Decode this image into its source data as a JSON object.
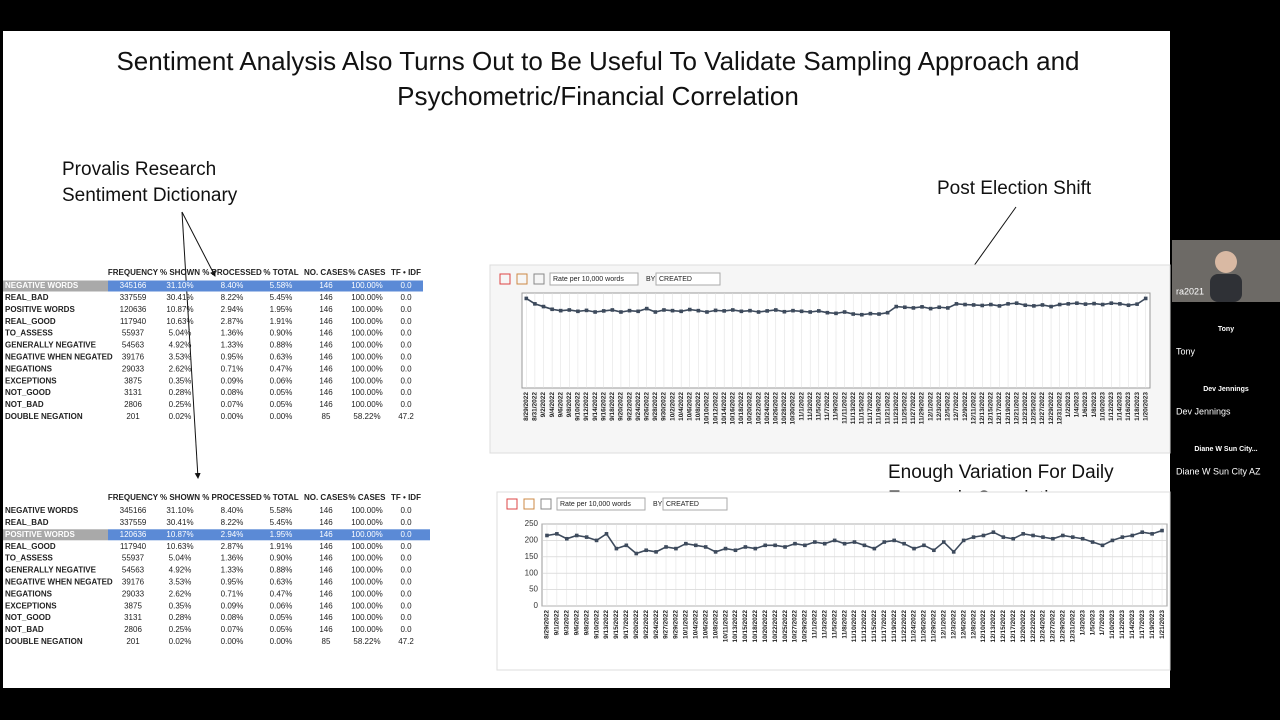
{
  "slide": {
    "title_lines": [
      "Sentiment Analysis Also Turns Out to Be Useful To Validate Sampling Approach and",
      "Psychometric/Financial Correlation"
    ],
    "dictionary_note": [
      "Provalis Research",
      "Sentiment Dictionary"
    ],
    "shift_note": "Post Election Shift",
    "variation_note": [
      "Enough Variation For Daily",
      "Economic Correlation"
    ]
  },
  "tables": [
    {
      "columns": [
        "FREQUENCY",
        "% SHOWN",
        "% PROCESSED",
        "% TOTAL",
        "NO. CASES",
        "% CASES",
        "TF • IDF"
      ],
      "selected_row": 0,
      "rows": [
        [
          "NEGATIVE WORDS",
          345166,
          "31.10%",
          "8.40%",
          "5.58%",
          146,
          "100.00%",
          "0.0"
        ],
        [
          "REAL_BAD",
          337559,
          "30.41%",
          "8.22%",
          "5.45%",
          146,
          "100.00%",
          "0.0"
        ],
        [
          "POSITIVE WORDS",
          120636,
          "10.87%",
          "2.94%",
          "1.95%",
          146,
          "100.00%",
          "0.0"
        ],
        [
          "REAL_GOOD",
          117940,
          "10.63%",
          "2.87%",
          "1.91%",
          146,
          "100.00%",
          "0.0"
        ],
        [
          "TO_ASSESS",
          55937,
          "5.04%",
          "1.36%",
          "0.90%",
          146,
          "100.00%",
          "0.0"
        ],
        [
          "GENERALLY NEGATIVE",
          54563,
          "4.92%",
          "1.33%",
          "0.88%",
          146,
          "100.00%",
          "0.0"
        ],
        [
          "NEGATIVE WHEN NEGATED",
          39176,
          "3.53%",
          "0.95%",
          "0.63%",
          146,
          "100.00%",
          "0.0"
        ],
        [
          "NEGATIONS",
          29033,
          "2.62%",
          "0.71%",
          "0.47%",
          146,
          "100.00%",
          "0.0"
        ],
        [
          "EXCEPTIONS",
          3875,
          "0.35%",
          "0.09%",
          "0.06%",
          146,
          "100.00%",
          "0.0"
        ],
        [
          "NOT_GOOD",
          3131,
          "0.28%",
          "0.08%",
          "0.05%",
          146,
          "100.00%",
          "0.0"
        ],
        [
          "NOT_BAD",
          2806,
          "0.25%",
          "0.07%",
          "0.05%",
          146,
          "100.00%",
          "0.0"
        ],
        [
          "DOUBLE NEGATION",
          201,
          "0.02%",
          "0.00%",
          "0.00%",
          85,
          "58.22%",
          "47.2"
        ]
      ]
    },
    {
      "columns": [
        "FREQUENCY",
        "% SHOWN",
        "% PROCESSED",
        "% TOTAL",
        "NO. CASES",
        "% CASES",
        "TF • IDF"
      ],
      "selected_row": 2,
      "rows": [
        [
          "NEGATIVE WORDS",
          345166,
          "31.10%",
          "8.40%",
          "5.58%",
          146,
          "100.00%",
          "0.0"
        ],
        [
          "REAL_BAD",
          337559,
          "30.41%",
          "8.22%",
          "5.45%",
          146,
          "100.00%",
          "0.0"
        ],
        [
          "POSITIVE WORDS",
          120636,
          "10.87%",
          "2.94%",
          "1.95%",
          146,
          "100.00%",
          "0.0"
        ],
        [
          "REAL_GOOD",
          117940,
          "10.63%",
          "2.87%",
          "1.91%",
          146,
          "100.00%",
          "0.0"
        ],
        [
          "TO_ASSESS",
          55937,
          "5.04%",
          "1.36%",
          "0.90%",
          146,
          "100.00%",
          "0.0"
        ],
        [
          "GENERALLY NEGATIVE",
          54563,
          "4.92%",
          "1.33%",
          "0.88%",
          146,
          "100.00%",
          "0.0"
        ],
        [
          "NEGATIVE WHEN NEGATED",
          39176,
          "3.53%",
          "0.95%",
          "0.63%",
          146,
          "100.00%",
          "0.0"
        ],
        [
          "NEGATIONS",
          29033,
          "2.62%",
          "0.71%",
          "0.47%",
          146,
          "100.00%",
          "0.0"
        ],
        [
          "EXCEPTIONS",
          3875,
          "0.35%",
          "0.09%",
          "0.06%",
          146,
          "100.00%",
          "0.0"
        ],
        [
          "NOT_GOOD",
          3131,
          "0.28%",
          "0.08%",
          "0.05%",
          146,
          "100.00%",
          "0.0"
        ],
        [
          "NOT_BAD",
          2806,
          "0.25%",
          "0.07%",
          "0.05%",
          146,
          "100.00%",
          "0.0"
        ],
        [
          "DOUBLE NEGATION",
          201,
          "0.02%",
          "0.00%",
          "0.00%",
          85,
          "58.22%",
          "47.2"
        ]
      ]
    }
  ],
  "chart_data": [
    {
      "type": "line",
      "rate_option": "Rate per 10,000 words",
      "by_label": "BY",
      "by_option": "CREATED",
      "color": "#3d4a5c",
      "grid": true,
      "ylim": [
        0,
        700
      ],
      "categories": [
        "8/29/2022",
        "8/31/2022",
        "9/2/2022",
        "9/4/2022",
        "9/6/2022",
        "9/8/2022",
        "9/10/2022",
        "9/12/2022",
        "9/14/2022",
        "9/16/2022",
        "9/18/2022",
        "9/20/2022",
        "9/22/2022",
        "9/24/2022",
        "9/26/2022",
        "9/28/2022",
        "9/30/2022",
        "10/2/2022",
        "10/4/2022",
        "10/6/2022",
        "10/8/2022",
        "10/10/2022",
        "10/12/2022",
        "10/14/2022",
        "10/16/2022",
        "10/18/2022",
        "10/20/2022",
        "10/22/2022",
        "10/24/2022",
        "10/26/2022",
        "10/28/2022",
        "10/30/2022",
        "11/1/2022",
        "11/3/2022",
        "11/5/2022",
        "11/7/2022",
        "11/9/2022",
        "11/11/2022",
        "11/13/2022",
        "11/15/2022",
        "11/17/2022",
        "11/19/2022",
        "11/21/2022",
        "11/23/2022",
        "11/25/2022",
        "11/27/2022",
        "11/29/2022",
        "12/1/2022",
        "12/3/2022",
        "12/5/2022",
        "12/7/2022",
        "12/9/2022",
        "12/11/2022",
        "12/13/2022",
        "12/15/2022",
        "12/17/2022",
        "12/19/2022",
        "12/21/2022",
        "12/23/2022",
        "12/25/2022",
        "12/27/2022",
        "12/29/2022",
        "12/31/2022",
        "1/2/2023",
        "1/4/2023",
        "1/6/2023",
        "1/8/2023",
        "1/10/2023",
        "1/12/2023",
        "1/14/2023",
        "1/16/2023",
        "1/18/2023",
        "1/20/2023"
      ],
      "values": [
        660,
        620,
        600,
        580,
        570,
        575,
        565,
        572,
        560,
        568,
        575,
        560,
        570,
        565,
        585,
        560,
        575,
        570,
        565,
        578,
        570,
        560,
        572,
        568,
        575,
        565,
        570,
        560,
        568,
        575,
        562,
        570,
        565,
        560,
        568,
        555,
        550,
        560,
        545,
        540,
        548,
        545,
        555,
        600,
        595,
        590,
        598,
        585,
        595,
        590,
        620,
        615,
        612,
        608,
        615,
        605,
        620,
        625,
        610,
        605,
        612,
        600,
        615,
        620,
        625,
        618,
        622,
        615,
        625,
        620,
        610,
        618,
        660
      ]
    },
    {
      "type": "line",
      "rate_option": "Rate per 10,000 words",
      "by_label": "BY",
      "by_option": "CREATED",
      "color": "#3d4a5c",
      "grid": true,
      "ylim": [
        0,
        250
      ],
      "yticks": [
        0,
        50,
        100,
        150,
        200,
        250
      ],
      "categories": [
        "8/29/2022",
        "9/1/2022",
        "9/3/2022",
        "9/6/2022",
        "9/8/2022",
        "9/10/2022",
        "9/13/2022",
        "9/15/2022",
        "9/17/2022",
        "9/20/2022",
        "9/22/2022",
        "9/24/2022",
        "9/27/2022",
        "9/29/2022",
        "10/1/2022",
        "10/4/2022",
        "10/6/2022",
        "10/8/2022",
        "10/11/2022",
        "10/13/2022",
        "10/15/2022",
        "10/18/2022",
        "10/20/2022",
        "10/22/2022",
        "10/25/2022",
        "10/27/2022",
        "10/29/2022",
        "11/1/2022",
        "11/3/2022",
        "11/5/2022",
        "11/8/2022",
        "11/10/2022",
        "11/12/2022",
        "11/15/2022",
        "11/17/2022",
        "11/19/2022",
        "11/22/2022",
        "11/24/2022",
        "11/26/2022",
        "11/29/2022",
        "12/1/2022",
        "12/3/2022",
        "12/6/2022",
        "12/8/2022",
        "12/10/2022",
        "12/13/2022",
        "12/15/2022",
        "12/17/2022",
        "12/20/2022",
        "12/22/2022",
        "12/24/2022",
        "12/27/2022",
        "12/29/2022",
        "12/31/2022",
        "1/3/2023",
        "1/5/2023",
        "1/7/2023",
        "1/10/2023",
        "1/12/2023",
        "1/14/2023",
        "1/17/2023",
        "1/19/2023",
        "1/21/2023"
      ],
      "values": [
        215,
        220,
        205,
        215,
        210,
        200,
        220,
        175,
        185,
        160,
        170,
        165,
        180,
        175,
        190,
        185,
        180,
        165,
        175,
        170,
        180,
        175,
        185,
        185,
        180,
        190,
        185,
        195,
        190,
        200,
        190,
        195,
        185,
        175,
        195,
        200,
        190,
        175,
        185,
        170,
        195,
        165,
        200,
        210,
        215,
        225,
        210,
        205,
        220,
        215,
        210,
        205,
        215,
        210,
        205,
        195,
        185,
        200,
        210,
        215,
        225,
        220,
        230
      ]
    }
  ],
  "participants": {
    "video_name": "ra2021",
    "tiles": [
      [
        "Tony",
        "Tony"
      ],
      [
        "Dev Jennings",
        "Dev Jennings"
      ],
      [
        "Diane W Sun City...",
        "Diane W Sun City AZ"
      ]
    ]
  }
}
